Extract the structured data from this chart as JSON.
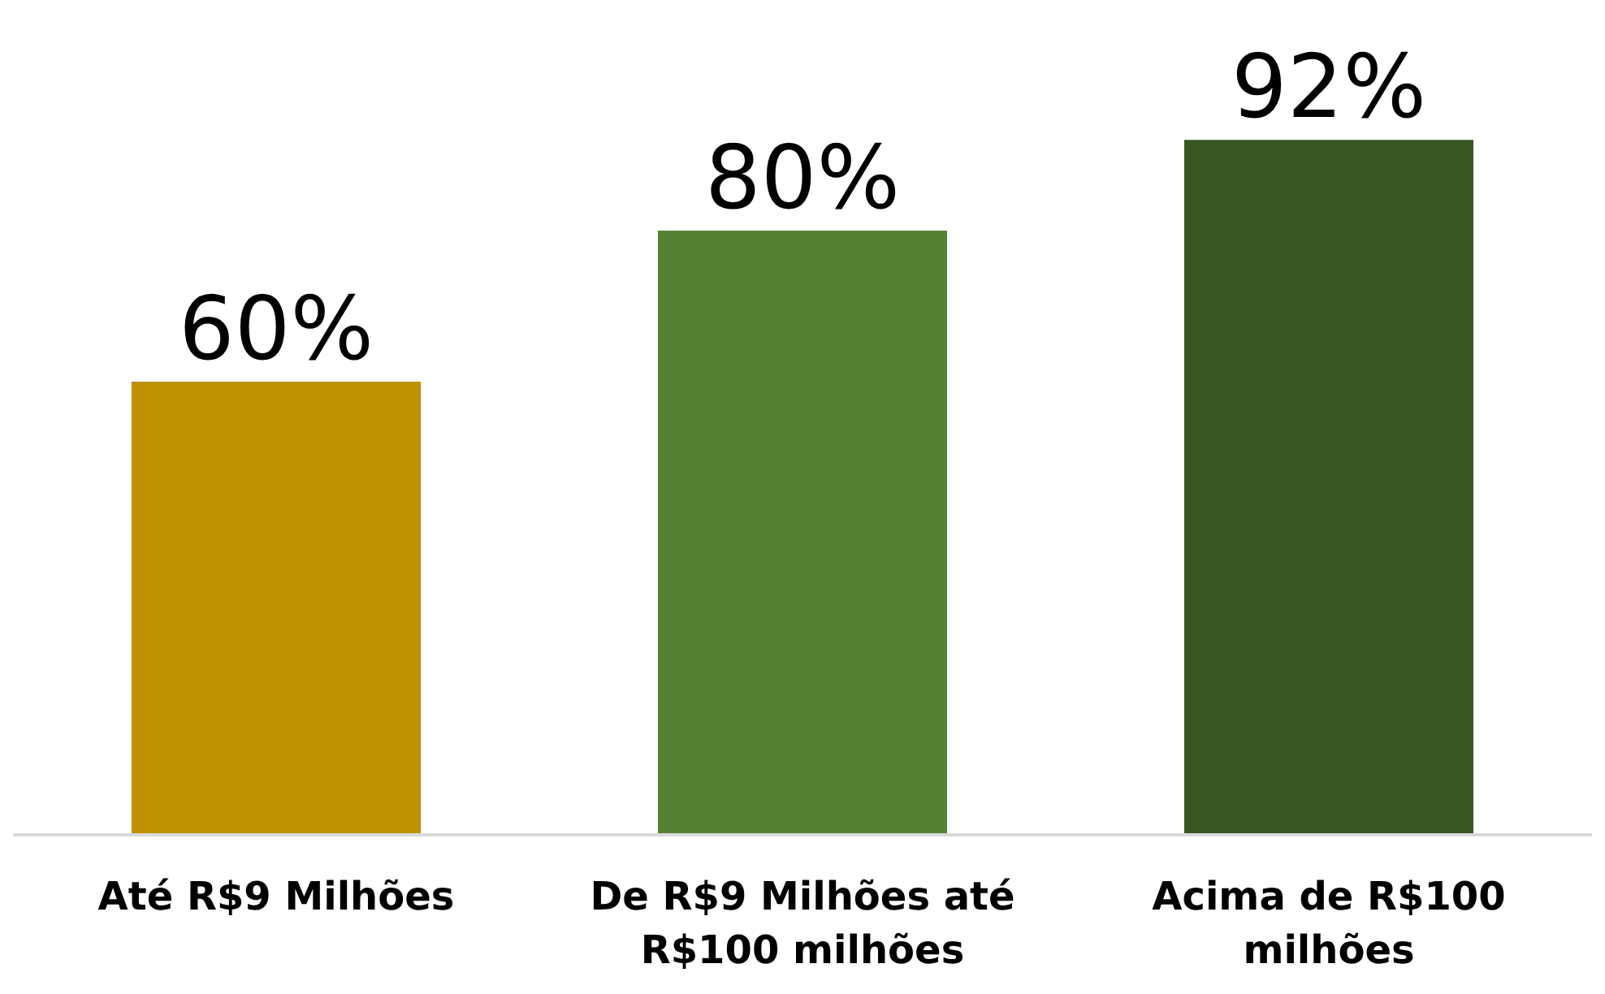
{
  "chart_data": {
    "type": "bar",
    "categories": [
      "Até R$9 Milhões",
      "De R$9 Milhões até R$100 milhões",
      "Acima de R$100 milhões"
    ],
    "values": [
      60,
      80,
      92
    ],
    "colors": [
      "#bf9000",
      "#548235",
      "#385723"
    ],
    "value_labels": [
      "60%",
      "80%",
      "92%"
    ]
  }
}
